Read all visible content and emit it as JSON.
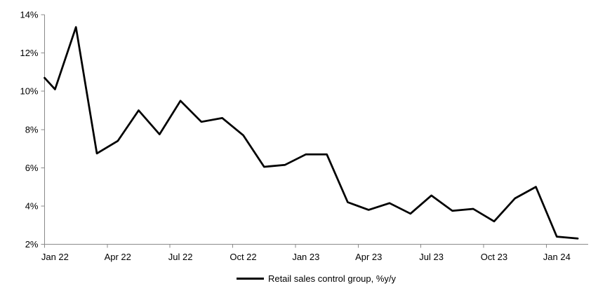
{
  "chart_data": {
    "type": "line",
    "title": "",
    "categories": [
      "Jan 22",
      "Feb 22",
      "Mar 22",
      "Apr 22",
      "May 22",
      "Jun 22",
      "Jul 22",
      "Aug 22",
      "Sep 22",
      "Oct 22",
      "Nov 22",
      "Dec 22",
      "Jan 23",
      "Feb 23",
      "Mar 23",
      "Apr 23",
      "May 23",
      "Jun 23",
      "Jul 23",
      "Aug 23",
      "Sep 23",
      "Oct 23",
      "Nov 23",
      "Dec 23",
      "Jan 24",
      "Feb 24"
    ],
    "series": [
      {
        "name": "Retail sales control group, %y/y",
        "color": "#000000",
        "values": [
          10.1,
          13.35,
          6.75,
          7.4,
          9.0,
          7.75,
          9.5,
          8.4,
          8.6,
          7.7,
          6.05,
          6.15,
          6.7,
          6.7,
          4.2,
          3.8,
          4.15,
          3.6,
          4.55,
          3.75,
          3.85,
          3.2,
          4.4,
          5.0,
          2.4,
          2.3
        ],
        "line_enters_left_axis_at": 10.7
      }
    ],
    "x_tick_labels": [
      "Jan 22",
      "Apr 22",
      "Jul 22",
      "Oct 22",
      "Jan 23",
      "Apr 23",
      "Jul 23",
      "Oct 23",
      "Jan 24"
    ],
    "x_tick_interval_months": 3,
    "y_tick_labels": [
      "2%",
      "4%",
      "6%",
      "8%",
      "10%",
      "12%",
      "14%"
    ],
    "ylim": [
      2,
      14
    ],
    "grid": false,
    "legend_position": "bottom-center",
    "axis_color": "#8a8a8a",
    "text_color": "#000000",
    "background_color": "#ffffff"
  }
}
